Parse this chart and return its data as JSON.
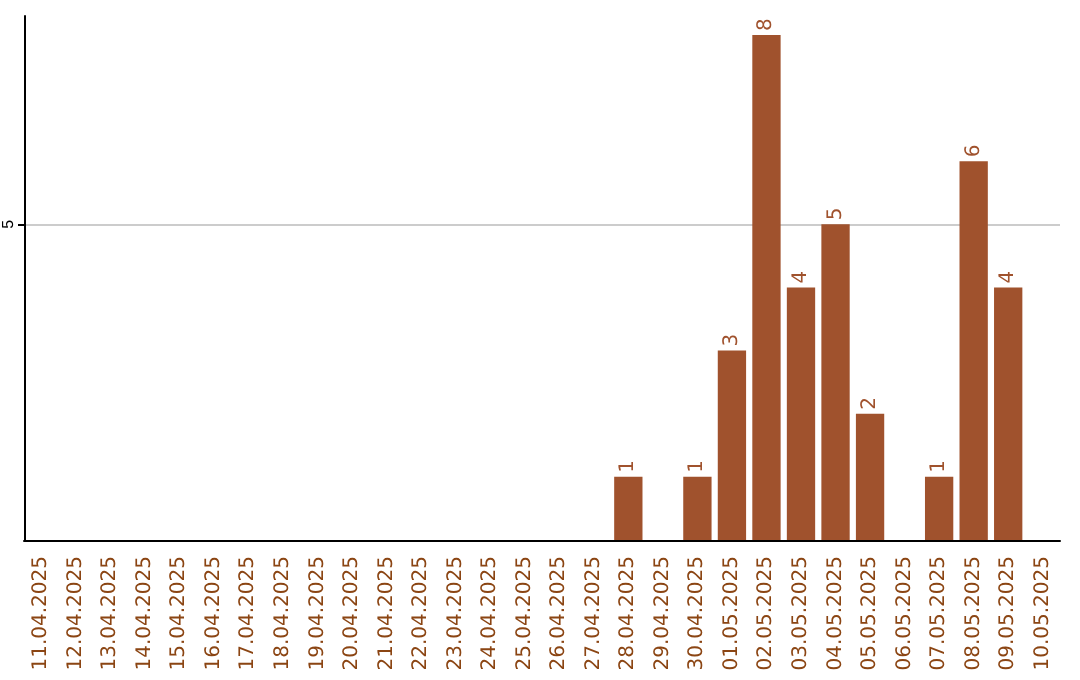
{
  "chart_data": {
    "type": "bar",
    "categories": [
      "11.04.2025",
      "12.04.2025",
      "13.04.2025",
      "14.04.2025",
      "15.04.2025",
      "16.04.2025",
      "17.04.2025",
      "18.04.2025",
      "19.04.2025",
      "20.04.2025",
      "21.04.2025",
      "22.04.2025",
      "23.04.2025",
      "24.04.2025",
      "25.04.2025",
      "26.04.2025",
      "27.04.2025",
      "28.04.2025",
      "29.04.2025",
      "30.04.2025",
      "01.05.2025",
      "02.05.2025",
      "03.05.2025",
      "04.05.2025",
      "05.05.2025",
      "06.05.2025",
      "07.05.2025",
      "08.05.2025",
      "09.05.2025",
      "10.05.2025"
    ],
    "values": [
      null,
      null,
      null,
      null,
      null,
      null,
      null,
      null,
      null,
      null,
      null,
      null,
      null,
      null,
      null,
      null,
      null,
      1,
      null,
      1,
      3,
      8,
      4,
      5,
      2,
      null,
      1,
      6,
      4,
      null
    ],
    "color": "#a0522d",
    "ylim": [
      0,
      8.3
    ],
    "yticks": [
      5
    ],
    "data_labels": true,
    "grid": "y"
  }
}
